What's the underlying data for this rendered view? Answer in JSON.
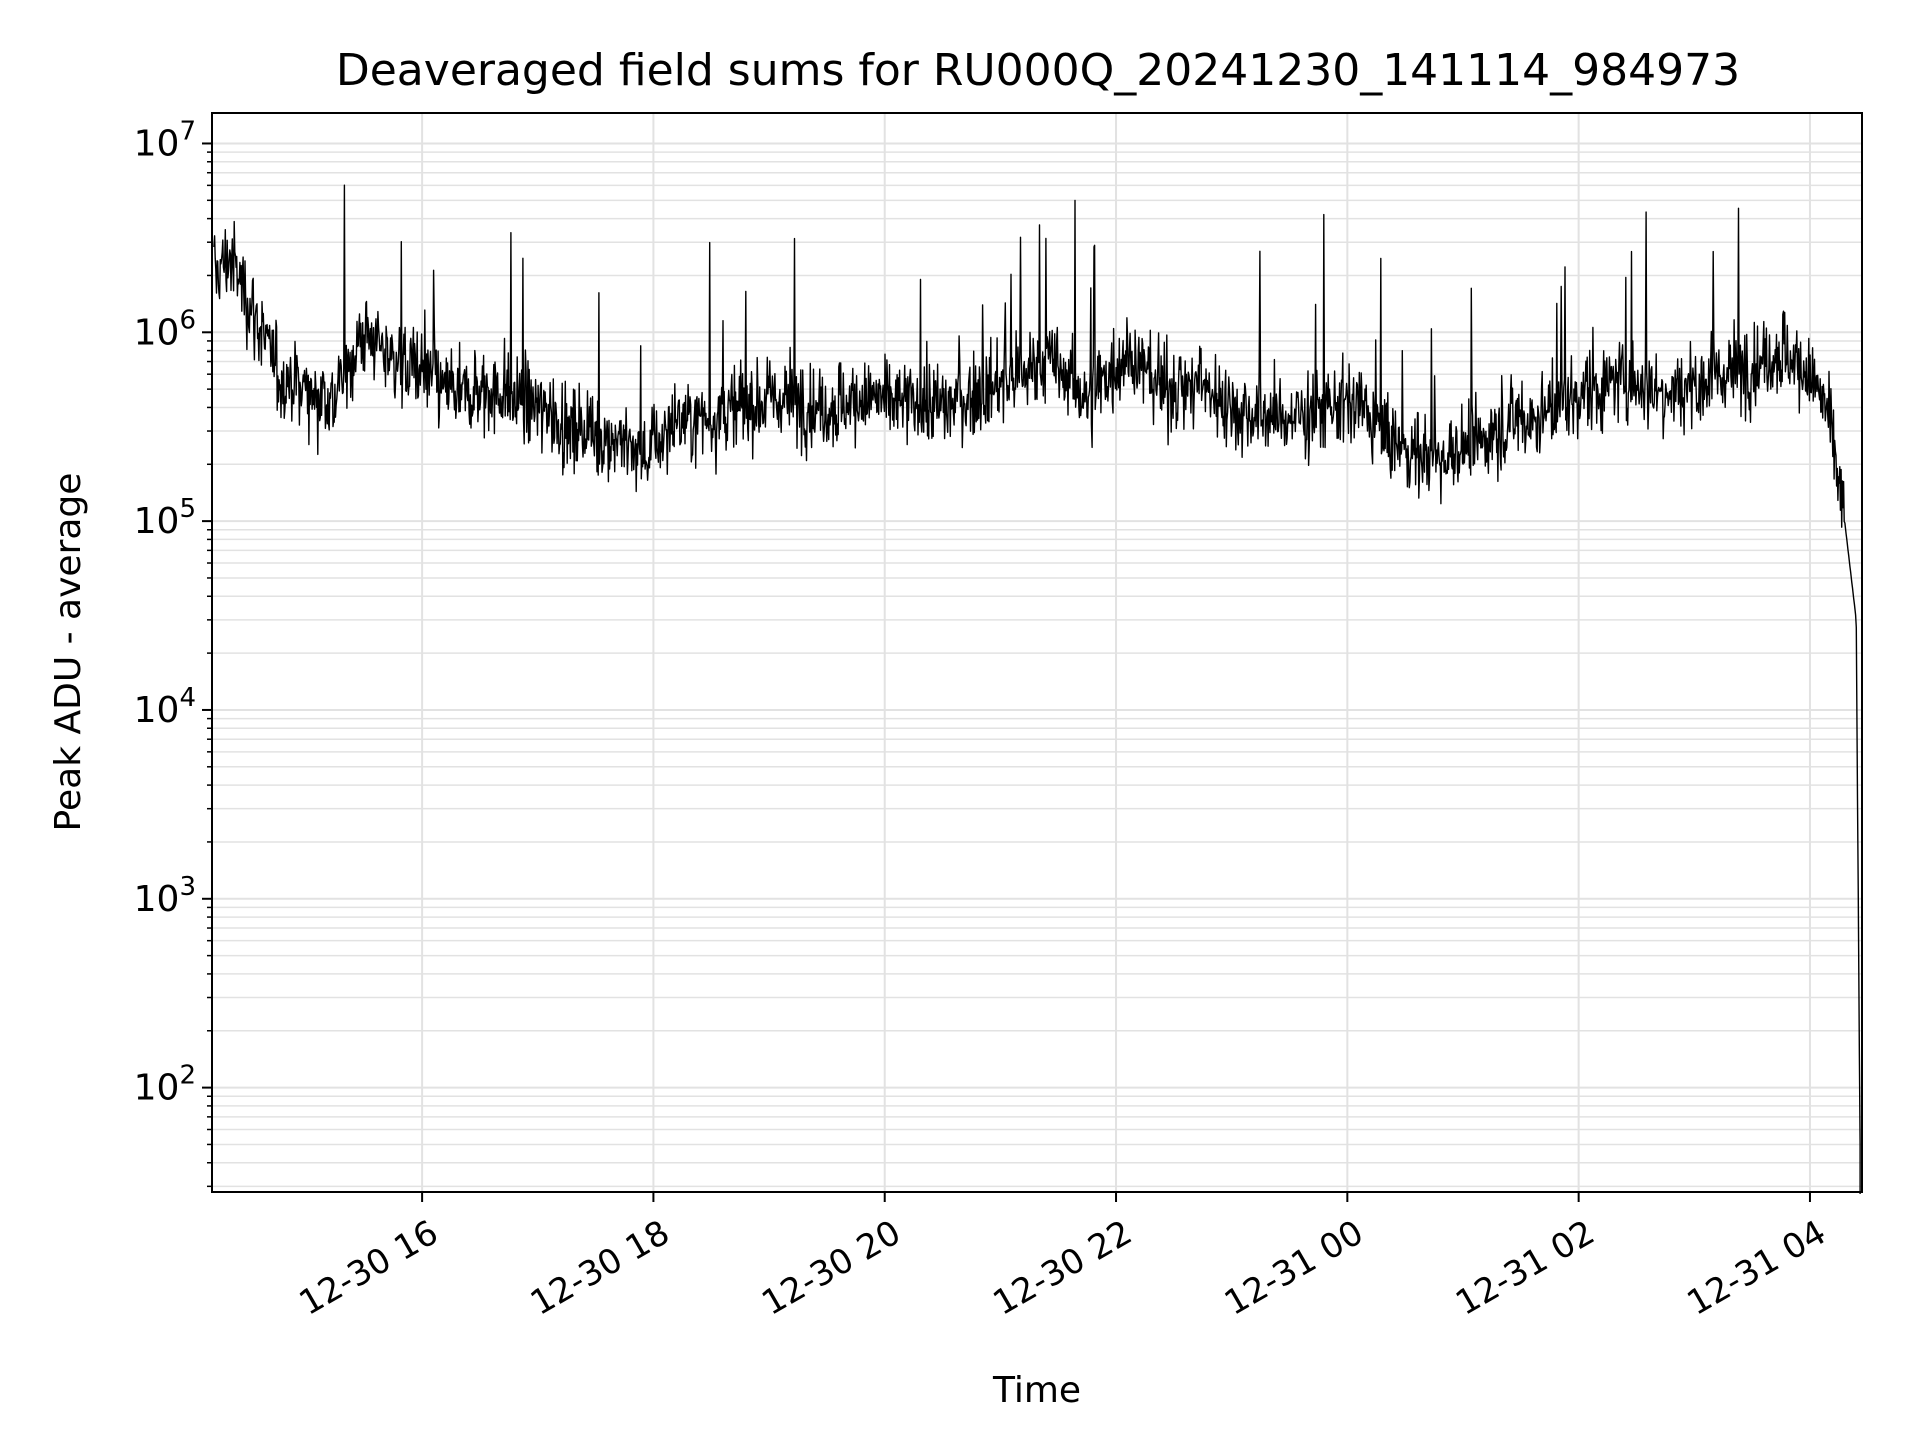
{
  "chart_data": {
    "type": "line",
    "title": "Deaveraged field sums for RU000Q_20241230_141114_984973",
    "xlabel": "Time",
    "ylabel": "Peak ADU - average",
    "yscale": "log",
    "xlim": [
      "2024-12-30 14:11",
      "2024-12-31 04:27"
    ],
    "ylim": [
      28,
      14500000
    ],
    "grid": true,
    "x_ticks": [
      {
        "value": "2024-12-30 16:00",
        "label": "12-30 16"
      },
      {
        "value": "2024-12-30 18:00",
        "label": "12-30 18"
      },
      {
        "value": "2024-12-30 20:00",
        "label": "12-30 20"
      },
      {
        "value": "2024-12-30 22:00",
        "label": "12-30 22"
      },
      {
        "value": "2024-12-31 00:00",
        "label": "12-31 00"
      },
      {
        "value": "2024-12-31 02:00",
        "label": "12-31 02"
      },
      {
        "value": "2024-12-31 04:00",
        "label": "12-31 04"
      }
    ],
    "y_ticks": [
      {
        "value": 100,
        "base": "10",
        "exp": "2"
      },
      {
        "value": 1000,
        "base": "10",
        "exp": "3"
      },
      {
        "value": 10000,
        "base": "10",
        "exp": "4"
      },
      {
        "value": 100000,
        "base": "10",
        "exp": "5"
      },
      {
        "value": 1000000,
        "base": "10",
        "exp": "6"
      },
      {
        "value": 10000000,
        "base": "10",
        "exp": "7"
      }
    ],
    "series": [
      {
        "color": "#000000",
        "x": [
          "2024-12-30 14:12",
          "2024-12-30 14:20",
          "2024-12-30 14:30",
          "2024-12-30 14:45",
          "2024-12-30 15:00",
          "2024-12-30 15:15",
          "2024-12-30 15:30",
          "2024-12-30 15:40",
          "2024-12-30 16:00",
          "2024-12-30 16:20",
          "2024-12-30 16:40",
          "2024-12-30 17:00",
          "2024-12-30 17:20",
          "2024-12-30 17:40",
          "2024-12-30 17:55",
          "2024-12-30 18:10",
          "2024-12-30 18:30",
          "2024-12-30 18:50",
          "2024-12-30 19:10",
          "2024-12-30 19:30",
          "2024-12-30 19:50",
          "2024-12-30 20:10",
          "2024-12-30 20:30",
          "2024-12-30 20:50",
          "2024-12-30 21:10",
          "2024-12-30 21:25",
          "2024-12-30 21:45",
          "2024-12-30 22:05",
          "2024-12-30 22:25",
          "2024-12-30 22:45",
          "2024-12-30 23:05",
          "2024-12-30 23:25",
          "2024-12-30 23:45",
          "2024-12-31 00:05",
          "2024-12-31 00:25",
          "2024-12-31 00:45",
          "2024-12-31 01:05",
          "2024-12-31 01:25",
          "2024-12-31 01:45",
          "2024-12-31 02:05",
          "2024-12-31 02:25",
          "2024-12-31 02:45",
          "2024-12-31 03:05",
          "2024-12-31 03:25",
          "2024-12-31 03:45",
          "2024-12-31 04:00",
          "2024-12-31 04:10",
          "2024-12-31 04:18",
          "2024-12-31 04:24",
          "2024-12-31 04:26"
        ],
        "y": [
          2000000,
          2500000,
          1500000,
          600000,
          500000,
          450000,
          1000000,
          800000,
          600000,
          450000,
          500000,
          400000,
          300000,
          280000,
          220000,
          330000,
          350000,
          420000,
          450000,
          400000,
          450000,
          420000,
          400000,
          480000,
          600000,
          700000,
          450000,
          800000,
          500000,
          520000,
          380000,
          350000,
          380000,
          420000,
          250000,
          220000,
          250000,
          330000,
          380000,
          500000,
          550000,
          500000,
          550000,
          650000,
          800000,
          600000,
          350000,
          100000,
          30000,
          50
        ]
      }
    ]
  }
}
